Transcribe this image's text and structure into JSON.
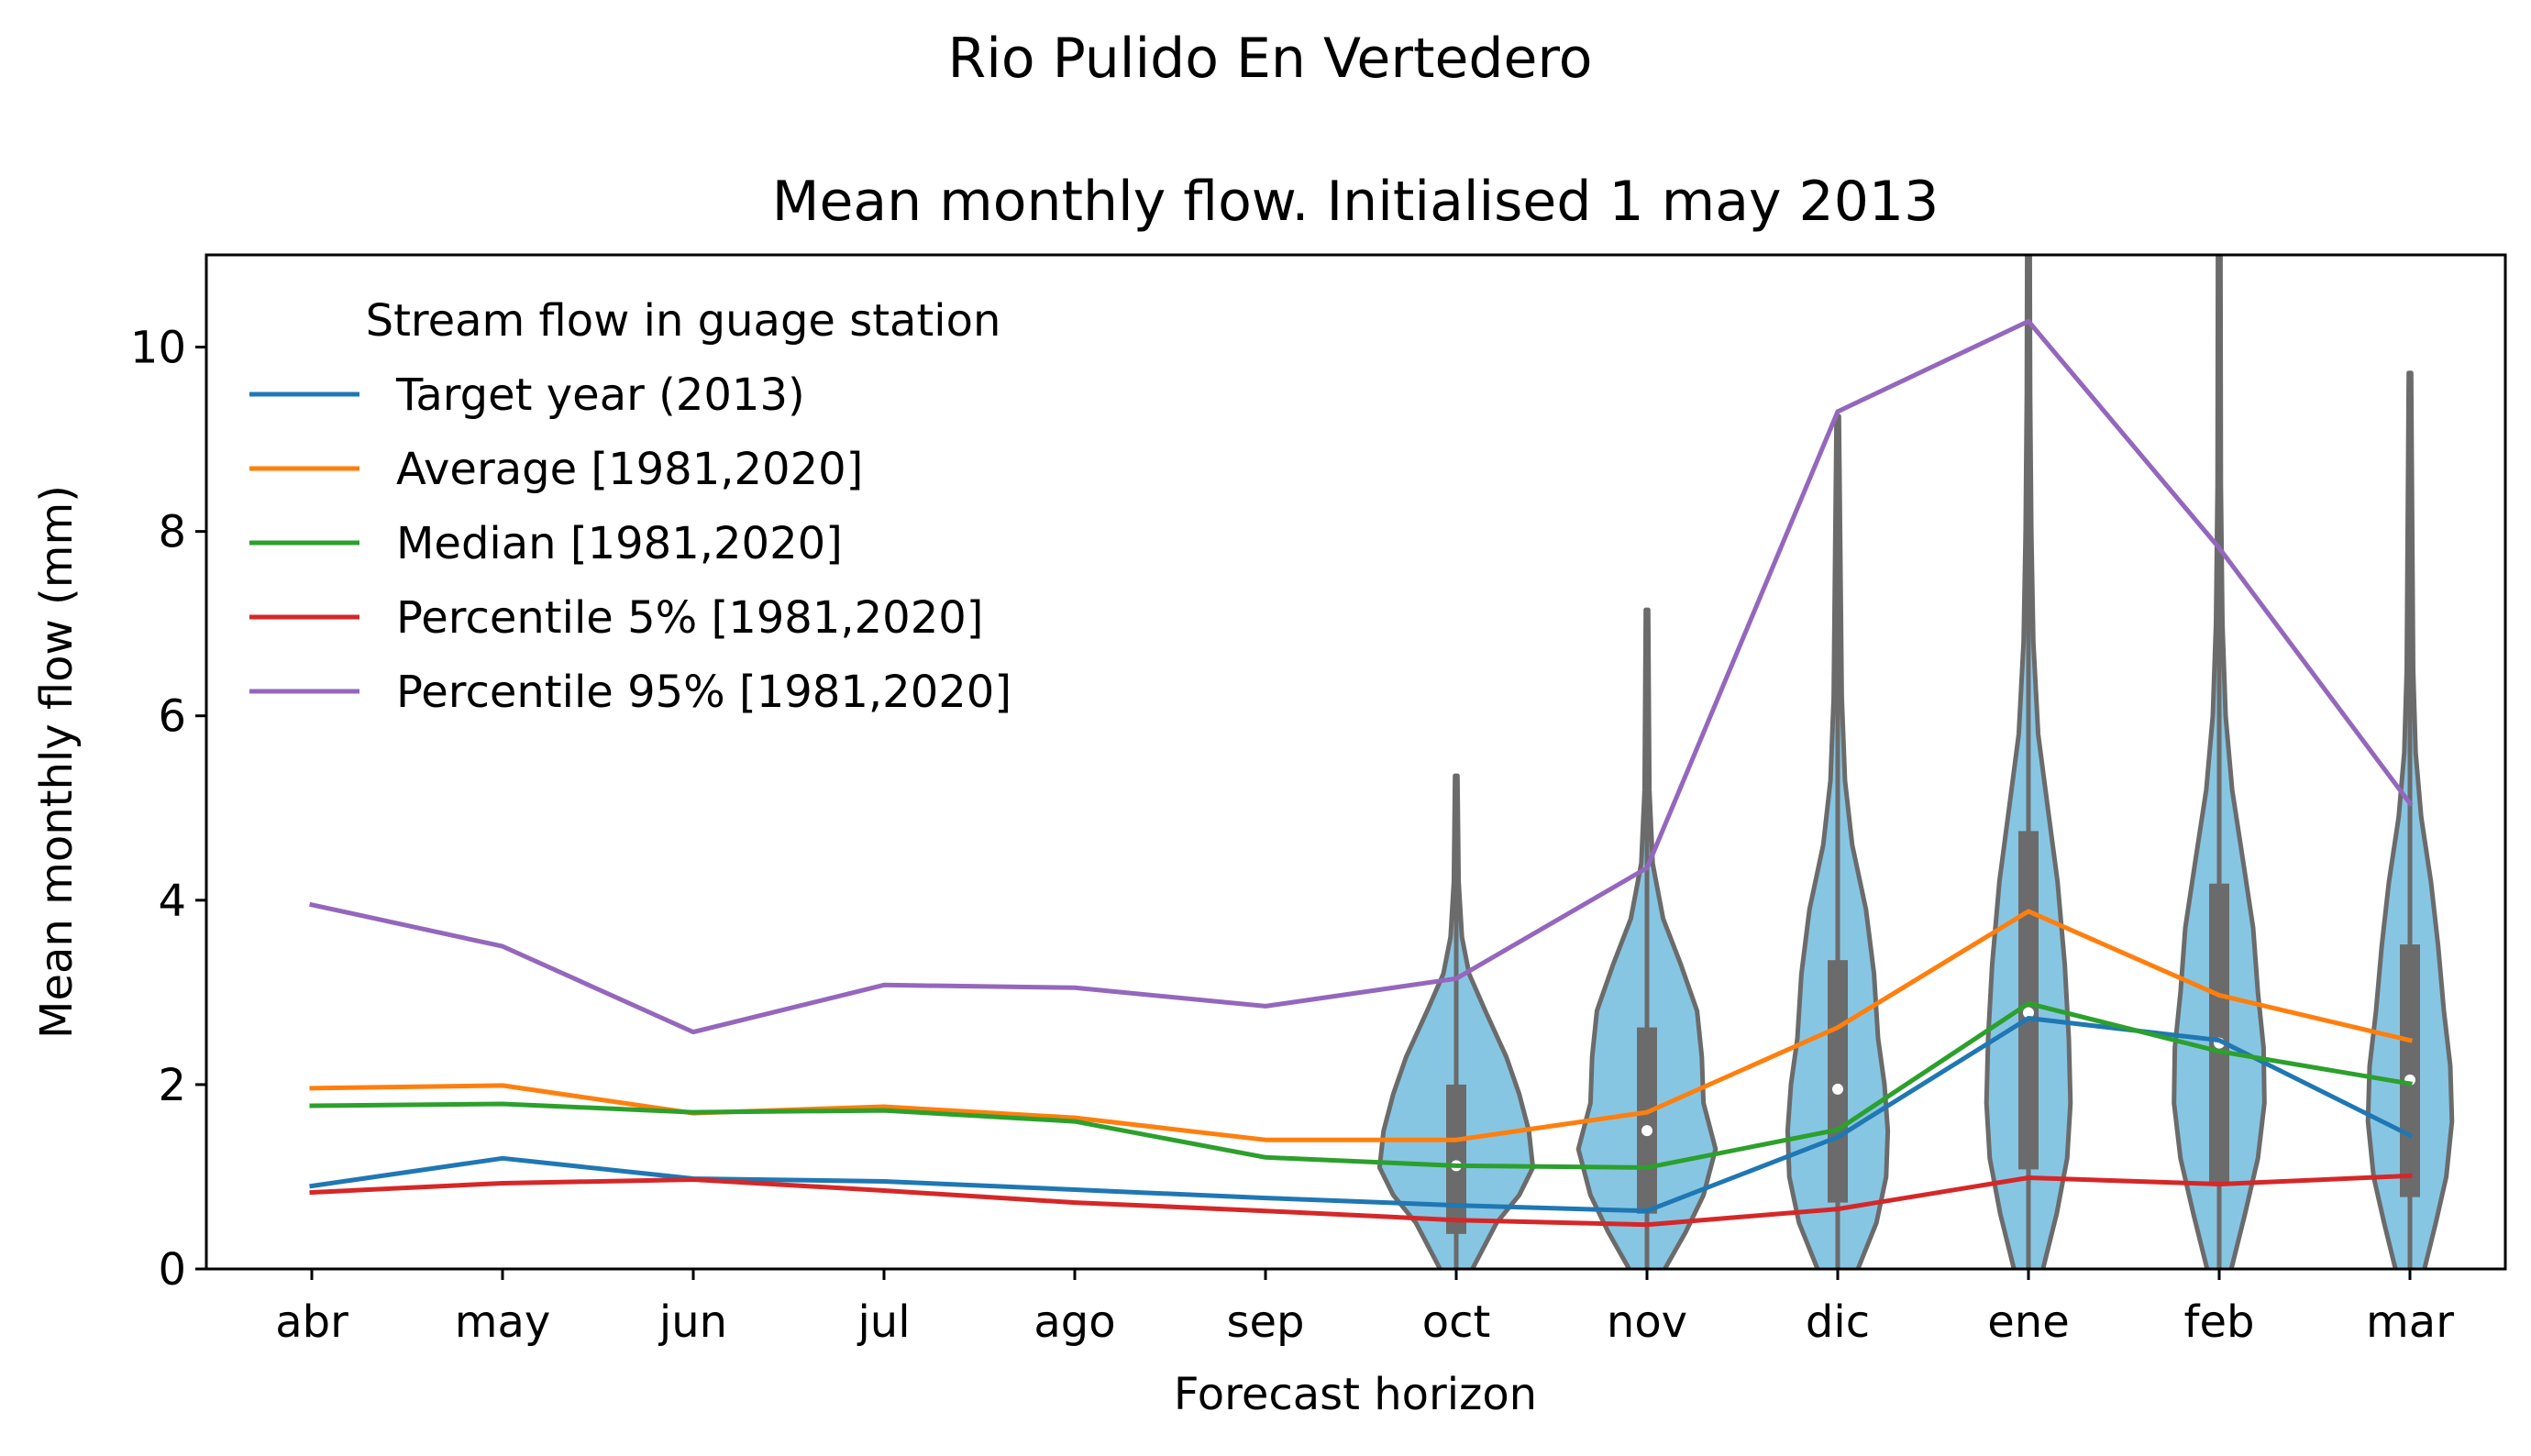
{
  "chart_data": {
    "type": "line",
    "suptitle": "Rio Pulido En Vertedero",
    "title": "Mean monthly flow. Initialised 1 may 2013",
    "xlabel": "Forecast horizon",
    "ylabel": "Mean monthly flow (mm)",
    "ylim": [
      0,
      11
    ],
    "yticks": [
      0,
      2,
      4,
      6,
      8,
      10
    ],
    "categories": [
      "abr",
      "may",
      "jun",
      "jul",
      "ago",
      "sep",
      "oct",
      "nov",
      "dic",
      "ene",
      "feb",
      "mar"
    ],
    "legend_title": "Stream flow in guage station",
    "legend_position": "upper-left",
    "grid": false,
    "series": [
      {
        "name": "Target year (2013)",
        "color": "#1f77b4",
        "values": [
          0.9,
          1.2,
          0.98,
          0.95,
          0.86,
          0.77,
          0.69,
          0.63,
          1.43,
          2.72,
          2.48,
          1.45
        ]
      },
      {
        "name": "Average [1981,2020]",
        "color": "#ff7f0e",
        "values": [
          1.96,
          1.99,
          1.69,
          1.76,
          1.64,
          1.4,
          1.4,
          1.7,
          2.62,
          3.88,
          2.97,
          2.48
        ]
      },
      {
        "name": "Median [1981,2020]",
        "color": "#2ca02c",
        "values": [
          1.77,
          1.79,
          1.7,
          1.72,
          1.6,
          1.21,
          1.12,
          1.1,
          1.51,
          2.88,
          2.36,
          2.01
        ]
      },
      {
        "name": "Percentile 5% [1981,2020]",
        "color": "#d62728",
        "values": [
          0.83,
          0.93,
          0.97,
          0.85,
          0.72,
          0.63,
          0.53,
          0.48,
          0.65,
          0.99,
          0.92,
          1.01
        ]
      },
      {
        "name": "Percentile 95% [1981,2020]",
        "color": "#9467bd",
        "values": [
          3.95,
          3.5,
          2.57,
          3.08,
          3.05,
          2.85,
          3.15,
          4.35,
          9.3,
          10.28,
          7.82,
          5.05
        ]
      }
    ],
    "violins": {
      "fill_color": "#87c6e3",
      "edge_color": "#6b6b6b",
      "items": [
        {
          "category": "oct",
          "min": -0.5,
          "max": 5.35,
          "q1": 0.38,
          "median": 1.12,
          "q3": 2.0,
          "shape": [
            [
              -0.5,
              0.06
            ],
            [
              0,
              0.2
            ],
            [
              0.5,
              0.5
            ],
            [
              0.8,
              0.78
            ],
            [
              1.1,
              0.95
            ],
            [
              1.5,
              0.9
            ],
            [
              1.9,
              0.78
            ],
            [
              2.3,
              0.62
            ],
            [
              2.8,
              0.36
            ],
            [
              3.2,
              0.16
            ],
            [
              3.6,
              0.07
            ],
            [
              4.2,
              0.03
            ],
            [
              5.35,
              0.015
            ]
          ]
        },
        {
          "category": "nov",
          "min": -0.5,
          "max": 7.15,
          "q1": 0.6,
          "median": 1.5,
          "q3": 2.62,
          "shape": [
            [
              -0.5,
              0.06
            ],
            [
              0,
              0.22
            ],
            [
              0.4,
              0.48
            ],
            [
              0.8,
              0.7
            ],
            [
              1.3,
              0.85
            ],
            [
              1.8,
              0.7
            ],
            [
              2.3,
              0.68
            ],
            [
              2.8,
              0.62
            ],
            [
              3.3,
              0.42
            ],
            [
              3.8,
              0.2
            ],
            [
              4.4,
              0.07
            ],
            [
              5.2,
              0.03
            ],
            [
              7.15,
              0.015
            ]
          ]
        },
        {
          "category": "dic",
          "min": -0.5,
          "max": 9.25,
          "q1": 0.72,
          "median": 1.95,
          "q3": 3.35,
          "shape": [
            [
              -0.5,
              0.12
            ],
            [
              0,
              0.25
            ],
            [
              0.5,
              0.48
            ],
            [
              1.0,
              0.6
            ],
            [
              1.5,
              0.62
            ],
            [
              2.0,
              0.58
            ],
            [
              2.5,
              0.5
            ],
            [
              3.2,
              0.45
            ],
            [
              3.9,
              0.35
            ],
            [
              4.6,
              0.18
            ],
            [
              5.3,
              0.09
            ],
            [
              6.2,
              0.05
            ],
            [
              9.25,
              0.015
            ]
          ]
        },
        {
          "category": "ene",
          "min": -0.5,
          "max": 11.5,
          "q1": 1.08,
          "median": 2.78,
          "q3": 4.75,
          "shape": [
            [
              -0.5,
              0.07
            ],
            [
              0,
              0.18
            ],
            [
              0.6,
              0.35
            ],
            [
              1.2,
              0.48
            ],
            [
              1.8,
              0.52
            ],
            [
              2.5,
              0.5
            ],
            [
              3.3,
              0.45
            ],
            [
              4.2,
              0.36
            ],
            [
              5.0,
              0.24
            ],
            [
              5.8,
              0.12
            ],
            [
              6.8,
              0.06
            ],
            [
              8.0,
              0.035
            ],
            [
              9.5,
              0.02
            ],
            [
              11.5,
              0.015
            ]
          ]
        },
        {
          "category": "feb",
          "min": -0.5,
          "max": 11.5,
          "q1": 0.92,
          "median": 2.45,
          "q3": 4.18,
          "shape": [
            [
              -0.5,
              0.06
            ],
            [
              0,
              0.15
            ],
            [
              0.6,
              0.32
            ],
            [
              1.2,
              0.48
            ],
            [
              1.8,
              0.56
            ],
            [
              2.4,
              0.55
            ],
            [
              3.0,
              0.48
            ],
            [
              3.7,
              0.42
            ],
            [
              4.4,
              0.3
            ],
            [
              5.2,
              0.16
            ],
            [
              6.0,
              0.08
            ],
            [
              7.0,
              0.04
            ],
            [
              8.5,
              0.02
            ],
            [
              11.5,
              0.015
            ]
          ]
        },
        {
          "category": "mar",
          "min": -0.5,
          "max": 9.72,
          "q1": 0.78,
          "median": 2.05,
          "q3": 3.52,
          "shape": [
            [
              -0.5,
              0.07
            ],
            [
              0,
              0.18
            ],
            [
              0.5,
              0.32
            ],
            [
              1.0,
              0.45
            ],
            [
              1.6,
              0.52
            ],
            [
              2.2,
              0.5
            ],
            [
              2.8,
              0.42
            ],
            [
              3.5,
              0.35
            ],
            [
              4.2,
              0.26
            ],
            [
              4.9,
              0.14
            ],
            [
              5.6,
              0.07
            ],
            [
              6.5,
              0.04
            ],
            [
              9.72,
              0.015
            ]
          ]
        }
      ]
    }
  }
}
